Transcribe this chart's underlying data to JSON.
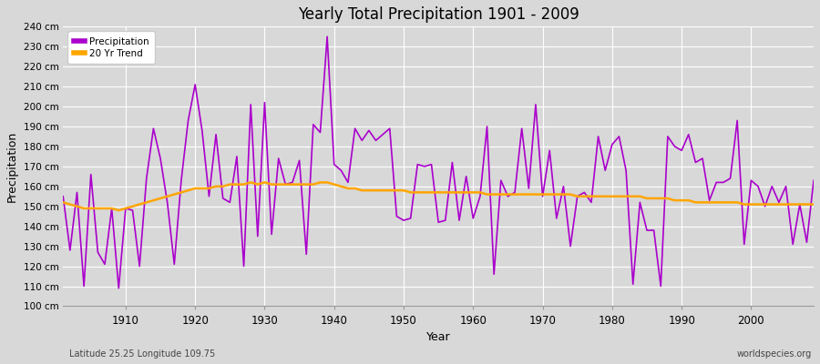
{
  "title": "Yearly Total Precipitation 1901 - 2009",
  "xlabel": "Year",
  "ylabel": "Precipitation",
  "subtitle_left": "Latitude 25.25 Longitude 109.75",
  "subtitle_right": "worldspecies.org",
  "ylim": [
    100,
    240
  ],
  "ytick_step": 10,
  "years": [
    1901,
    1902,
    1903,
    1904,
    1905,
    1906,
    1907,
    1908,
    1909,
    1910,
    1911,
    1912,
    1913,
    1914,
    1915,
    1916,
    1917,
    1918,
    1919,
    1920,
    1921,
    1922,
    1923,
    1924,
    1925,
    1926,
    1927,
    1928,
    1929,
    1930,
    1931,
    1932,
    1933,
    1934,
    1935,
    1936,
    1937,
    1938,
    1939,
    1940,
    1941,
    1942,
    1943,
    1944,
    1945,
    1946,
    1947,
    1948,
    1949,
    1950,
    1951,
    1952,
    1953,
    1954,
    1955,
    1956,
    1957,
    1958,
    1959,
    1960,
    1961,
    1962,
    1963,
    1964,
    1965,
    1966,
    1967,
    1968,
    1969,
    1970,
    1971,
    1972,
    1973,
    1974,
    1975,
    1976,
    1977,
    1978,
    1979,
    1980,
    1981,
    1982,
    1983,
    1984,
    1985,
    1986,
    1987,
    1988,
    1989,
    1990,
    1991,
    1992,
    1993,
    1994,
    1995,
    1996,
    1997,
    1998,
    1999,
    2000,
    2001,
    2002,
    2003,
    2004,
    2005,
    2006,
    2007,
    2008,
    2009
  ],
  "precip": [
    155,
    128,
    157,
    110,
    166,
    127,
    121,
    149,
    109,
    149,
    148,
    120,
    164,
    189,
    174,
    152,
    121,
    163,
    193,
    211,
    188,
    155,
    186,
    154,
    152,
    175,
    120,
    201,
    135,
    202,
    136,
    174,
    161,
    162,
    173,
    126,
    191,
    187,
    235,
    171,
    168,
    162,
    189,
    183,
    188,
    183,
    186,
    189,
    145,
    143,
    144,
    171,
    170,
    171,
    142,
    143,
    172,
    143,
    165,
    144,
    155,
    190,
    116,
    163,
    155,
    157,
    189,
    159,
    201,
    155,
    178,
    144,
    160,
    130,
    155,
    157,
    152,
    185,
    168,
    181,
    185,
    168,
    111,
    152,
    138,
    138,
    110,
    185,
    180,
    178,
    186,
    172,
    174,
    153,
    162,
    162,
    164,
    193,
    131,
    163,
    160,
    150,
    160,
    152,
    160,
    131,
    151,
    132,
    163
  ],
  "trend_years": [
    1901,
    1902,
    1903,
    1904,
    1905,
    1906,
    1907,
    1908,
    1909,
    1910,
    1911,
    1912,
    1913,
    1914,
    1915,
    1916,
    1917,
    1918,
    1919,
    1920,
    1921,
    1922,
    1923,
    1924,
    1925,
    1926,
    1927,
    1928,
    1929,
    1930,
    1931,
    1932,
    1933,
    1934,
    1935,
    1936,
    1937,
    1938,
    1939,
    1940,
    1941,
    1942,
    1943,
    1944,
    1945,
    1946,
    1947,
    1948,
    1949,
    1950,
    1951,
    1952,
    1953,
    1954,
    1955,
    1956,
    1957,
    1958,
    1959,
    1960,
    1961,
    1962,
    1963,
    1964,
    1965,
    1966,
    1967,
    1968,
    1969,
    1970,
    1971,
    1972,
    1973,
    1974,
    1975,
    1976,
    1977,
    1978,
    1979,
    1980,
    1981,
    1982,
    1983,
    1984,
    1985,
    1986,
    1987,
    1988,
    1989,
    1990,
    1991,
    1992,
    1993,
    1994,
    1995,
    1996,
    1997,
    1998,
    1999,
    2000,
    2001,
    2002,
    2003,
    2004,
    2005,
    2006,
    2007,
    2008,
    2009
  ],
  "trend": [
    152,
    151,
    150,
    149,
    149,
    149,
    149,
    149,
    148,
    149,
    150,
    151,
    152,
    153,
    154,
    155,
    156,
    157,
    158,
    159,
    159,
    159,
    160,
    160,
    161,
    161,
    161,
    162,
    161,
    162,
    161,
    161,
    161,
    161,
    161,
    161,
    161,
    162,
    162,
    161,
    160,
    159,
    159,
    158,
    158,
    158,
    158,
    158,
    158,
    158,
    157,
    157,
    157,
    157,
    157,
    157,
    157,
    157,
    157,
    157,
    157,
    156,
    156,
    156,
    156,
    156,
    156,
    156,
    156,
    156,
    156,
    156,
    156,
    156,
    155,
    155,
    155,
    155,
    155,
    155,
    155,
    155,
    155,
    155,
    154,
    154,
    154,
    154,
    153,
    153,
    153,
    152,
    152,
    152,
    152,
    152,
    152,
    152,
    151,
    151,
    151,
    151,
    151,
    151,
    151,
    151,
    151,
    151,
    151
  ],
  "precip_color": "#AA00CC",
  "trend_color": "#FFA500",
  "bg_color": "#D8D8D8",
  "plot_bg_color": "#D8D8D8",
  "grid_color": "#FFFFFF",
  "legend_items": [
    "Precipitation",
    "20 Yr Trend"
  ],
  "precip_linewidth": 1.2,
  "trend_linewidth": 1.8,
  "xticks": [
    1910,
    1920,
    1930,
    1940,
    1950,
    1960,
    1970,
    1980,
    1990,
    2000
  ]
}
